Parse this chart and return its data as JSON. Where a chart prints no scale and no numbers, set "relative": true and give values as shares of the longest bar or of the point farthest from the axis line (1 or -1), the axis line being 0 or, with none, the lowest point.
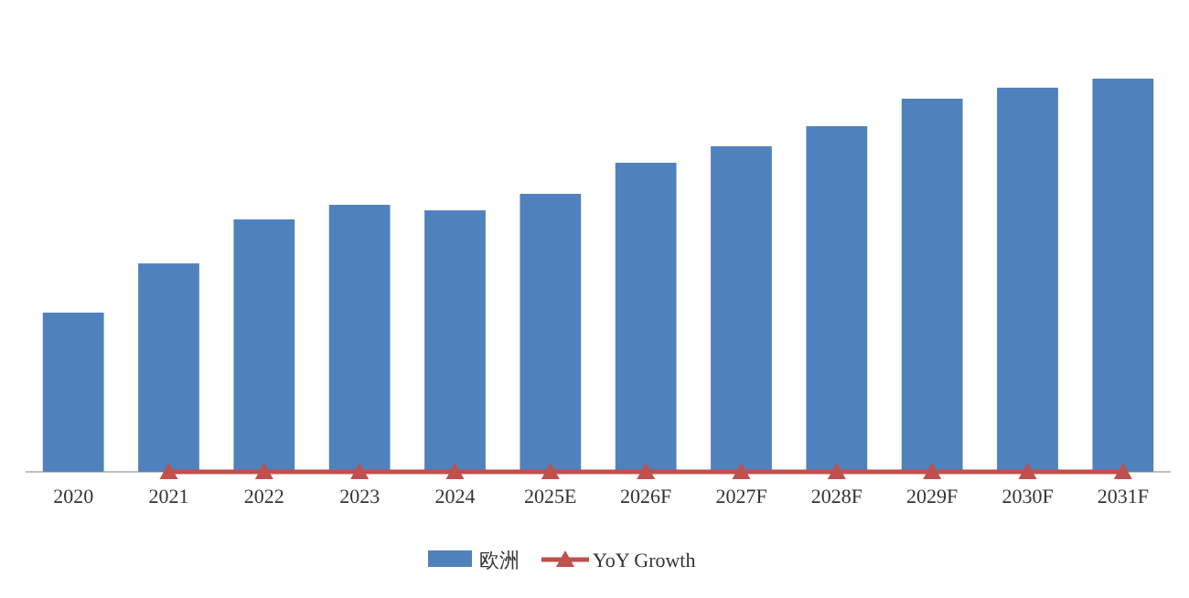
{
  "chart_data": {
    "type": "bar",
    "relative": true,
    "categories": [
      "2020",
      "2021",
      "2022",
      "2023",
      "2024",
      "2025E",
      "2026F",
      "2027F",
      "2028F",
      "2029F",
      "2030F",
      "2031F"
    ],
    "series": [
      {
        "name": "欧洲",
        "color": "#4f81bd",
        "values": [
          0.405,
          0.53,
          0.642,
          0.679,
          0.665,
          0.707,
          0.786,
          0.828,
          0.879,
          0.949,
          0.977,
          1
        ]
      },
      {
        "name": "YoY Growth",
        "type": "line",
        "color": "#c0504d",
        "marker": "triangle",
        "values": [
          null,
          0,
          0,
          0,
          0,
          0,
          0,
          0,
          0,
          0,
          0,
          0
        ]
      }
    ],
    "legend": "bottom"
  }
}
